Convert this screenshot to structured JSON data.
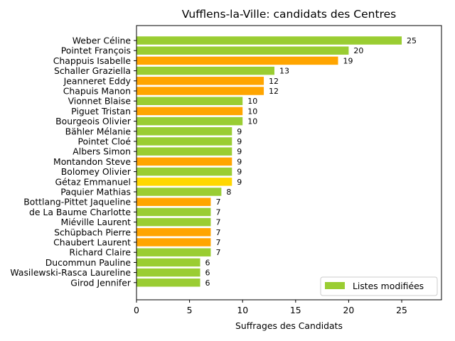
{
  "chart_data": {
    "type": "bar",
    "orientation": "horizontal",
    "title": "Vufflens-la-Ville: candidats des Centres",
    "xlabel": "Suffrages des Candidats",
    "ylabel": "",
    "xlim": [
      0,
      28.75
    ],
    "xticks": [
      0,
      5,
      10,
      15,
      20,
      25
    ],
    "grid": false,
    "colors": {
      "green": "#9acd32",
      "orange": "#ffa500",
      "gold": "#ffd700"
    },
    "categories": [
      "Weber Céline",
      "Pointet François",
      "Chappuis Isabelle",
      "Schaller Graziella",
      "Jeanneret Eddy",
      "Chapuis Manon",
      "Vionnet Blaise",
      "Piguet Tristan",
      "Bourgeois Olivier",
      "Bähler Mélanie",
      "Pointet Cloé",
      "Albers Simon",
      "Montandon Steve",
      "Bolomey Olivier",
      "Gétaz Emmanuel",
      "Paquier Mathias",
      "Bottlang-Pittet Jaqueline",
      "de La Baume Charlotte",
      "Miéville Laurent",
      "Schüpbach Pierre",
      "Chaubert Laurent",
      "Richard Claire",
      "Ducommun Pauline",
      "Wasilewski-Rasca Laureline",
      "Girod Jennifer"
    ],
    "values": [
      25,
      20,
      19,
      13,
      12,
      12,
      10,
      10,
      10,
      9,
      9,
      9,
      9,
      9,
      9,
      8,
      7,
      7,
      7,
      7,
      7,
      7,
      6,
      6,
      6
    ],
    "bar_colors": [
      "#9acd32",
      "#9acd32",
      "#ffa500",
      "#9acd32",
      "#ffa500",
      "#ffa500",
      "#9acd32",
      "#ffa500",
      "#9acd32",
      "#9acd32",
      "#9acd32",
      "#9acd32",
      "#ffa500",
      "#9acd32",
      "#ffd700",
      "#9acd32",
      "#ffa500",
      "#9acd32",
      "#9acd32",
      "#ffa500",
      "#ffa500",
      "#9acd32",
      "#9acd32",
      "#9acd32",
      "#9acd32"
    ],
    "legend": {
      "position": "lower-right",
      "entries": [
        {
          "label": "Listes modifiées",
          "color": "#9acd32"
        }
      ]
    }
  }
}
